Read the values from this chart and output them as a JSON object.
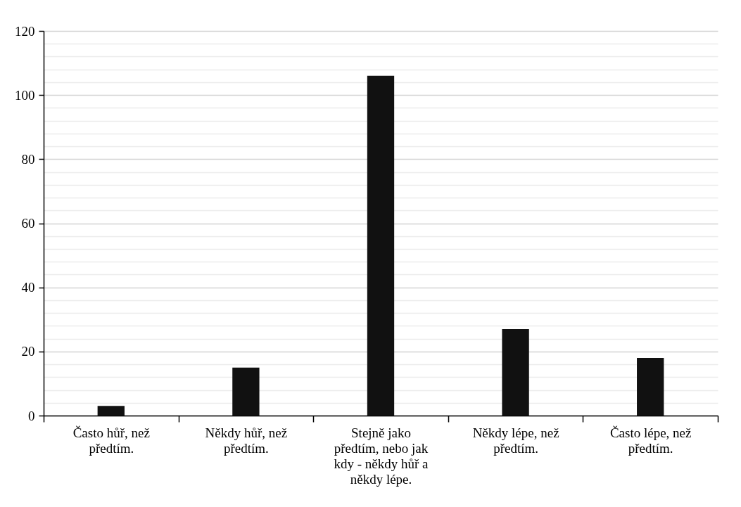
{
  "chart_data": {
    "type": "bar",
    "categories": [
      "Často hůř, než předtím.",
      "Někdy hůř, než předtím.",
      "Stejně jako předtím, nebo jak kdy - někdy hůř a někdy lépe.",
      "Někdy lépe, než předtím.",
      "Často lépe, než předtím."
    ],
    "values": [
      3,
      15,
      106,
      27,
      18
    ],
    "color": "#111111",
    "ylim": [
      0,
      120
    ],
    "yticks": [
      0,
      {
        "value": 4,
        "label": null
      },
      {
        "value": 8,
        "label": null
      },
      {
        "value": 12,
        "label": null
      },
      {
        "value": 16,
        "label": null
      },
      20,
      {
        "value": 24,
        "label": null
      },
      {
        "value": 28,
        "label": null
      },
      {
        "value": 32,
        "label": null
      },
      {
        "value": 36,
        "label": null
      },
      40,
      {
        "value": 44,
        "label": null
      },
      {
        "value": 48,
        "label": null
      },
      {
        "value": 52,
        "label": null
      },
      {
        "value": 56,
        "label": null
      },
      60,
      {
        "value": 64,
        "label": null
      },
      {
        "value": 68,
        "label": null
      },
      {
        "value": 72,
        "label": null
      },
      {
        "value": 76,
        "label": null
      },
      80,
      {
        "value": 84,
        "label": null
      },
      {
        "value": 88,
        "label": null
      },
      {
        "value": 92,
        "label": null
      },
      {
        "value": 96,
        "label": null
      },
      100,
      {
        "value": 104,
        "label": null
      },
      {
        "value": 108,
        "label": null
      },
      {
        "value": 112,
        "label": null
      },
      {
        "value": 116,
        "label": null
      },
      120
    ],
    "grid": "y"
  }
}
